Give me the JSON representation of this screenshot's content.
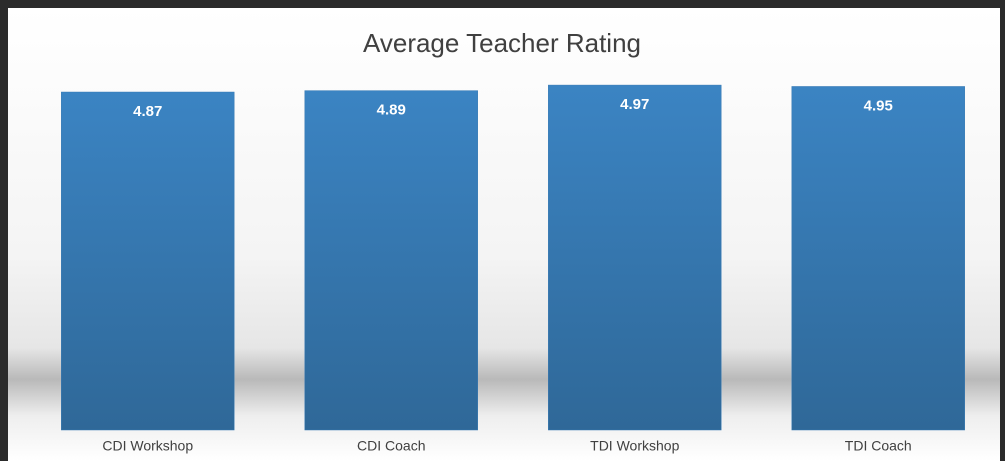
{
  "chart_data": {
    "type": "bar",
    "title": "Average Teacher Rating",
    "categories": [
      "CDI Workshop",
      "CDI Coach",
      "TDI Workshop",
      "TDI Coach"
    ],
    "values": [
      4.87,
      4.89,
      4.97,
      4.95
    ],
    "color": "#3578b3",
    "ylim": [
      0,
      5
    ]
  }
}
